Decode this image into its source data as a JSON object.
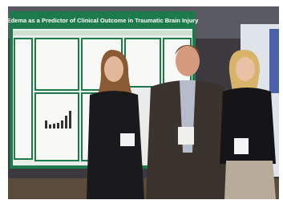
{
  "poster": {
    "title": "Edema as a Predictor of Clinical Outcome in Traumatic Brain Injury"
  }
}
